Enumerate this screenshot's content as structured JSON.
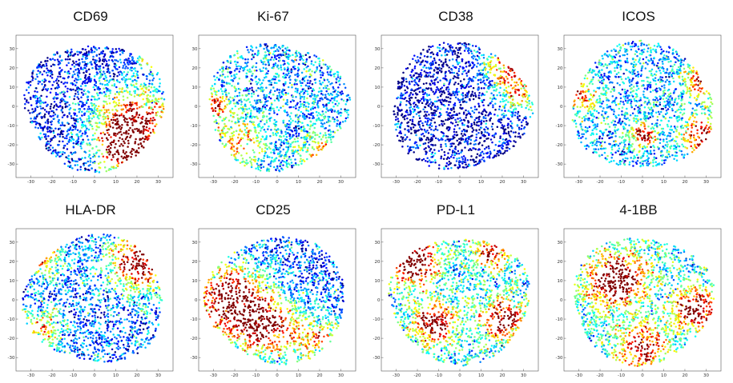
{
  "chart_data": [
    {
      "type": "scatter",
      "title": "CD69",
      "xticks": [
        "-30",
        "-20",
        "-10",
        "0",
        "10",
        "20",
        "30"
      ],
      "yticks": [
        "30",
        "20",
        "10",
        "0",
        "-10",
        "-20",
        "-30"
      ],
      "xlim": [
        -37,
        37
      ],
      "ylim": [
        -37,
        37
      ],
      "grid": false,
      "hotspots": [
        {
          "x": 18,
          "y": -8,
          "intensity": 0.85,
          "spread": 13
        },
        {
          "x": 14,
          "y": -22,
          "intensity": 0.9,
          "spread": 8
        },
        {
          "x": 28,
          "y": 28,
          "intensity": 0.55,
          "spread": 6
        }
      ],
      "baseline": 0.12
    },
    {
      "type": "scatter",
      "title": "Ki-67",
      "xticks": [
        "-30",
        "-20",
        "-10",
        "0",
        "10",
        "20",
        "30"
      ],
      "yticks": [
        "30",
        "20",
        "10",
        "0",
        "-10",
        "-20",
        "-30"
      ],
      "xlim": [
        -37,
        37
      ],
      "ylim": [
        -37,
        37
      ],
      "grid": false,
      "hotspots": [
        {
          "x": 30,
          "y": 30,
          "intensity": 0.95,
          "spread": 5
        },
        {
          "x": -30,
          "y": 0,
          "intensity": 0.55,
          "spread": 6
        },
        {
          "x": -18,
          "y": -18,
          "intensity": 0.45,
          "spread": 8
        },
        {
          "x": 20,
          "y": -25,
          "intensity": 0.45,
          "spread": 7
        }
      ],
      "baseline": 0.28
    },
    {
      "type": "scatter",
      "title": "CD38",
      "xticks": [
        "-30",
        "-20",
        "-10",
        "0",
        "10",
        "20",
        "30"
      ],
      "yticks": [
        "30",
        "20",
        "10",
        "0",
        "-10",
        "-20",
        "-30"
      ],
      "xlim": [
        -37,
        37
      ],
      "ylim": [
        -37,
        37
      ],
      "grid": false,
      "hotspots": [
        {
          "x": 25,
          "y": 22,
          "intensity": 0.9,
          "spread": 9
        },
        {
          "x": 28,
          "y": 5,
          "intensity": 0.55,
          "spread": 6
        }
      ],
      "baseline": 0.08
    },
    {
      "type": "scatter",
      "title": "ICOS",
      "xticks": [
        "-30",
        "-20",
        "-10",
        "0",
        "10",
        "20",
        "30"
      ],
      "yticks": [
        "30",
        "20",
        "10",
        "0",
        "-10",
        "-20",
        "-30"
      ],
      "xlim": [
        -37,
        37
      ],
      "ylim": [
        -37,
        37
      ],
      "grid": false,
      "hotspots": [
        {
          "x": 30,
          "y": 15,
          "intensity": 0.9,
          "spread": 6
        },
        {
          "x": 0,
          "y": -15,
          "intensity": 0.8,
          "spread": 4
        },
        {
          "x": -30,
          "y": 5,
          "intensity": 0.6,
          "spread": 5
        },
        {
          "x": 28,
          "y": -15,
          "intensity": 0.7,
          "spread": 7
        }
      ],
      "baseline": 0.3
    },
    {
      "type": "scatter",
      "title": "HLA-DR",
      "xticks": [
        "-30",
        "-20",
        "-10",
        "0",
        "10",
        "20",
        "30"
      ],
      "yticks": [
        "30",
        "20",
        "10",
        "0",
        "-10",
        "-20",
        "-30"
      ],
      "xlim": [
        -37,
        37
      ],
      "ylim": [
        -37,
        37
      ],
      "grid": false,
      "hotspots": [
        {
          "x": 22,
          "y": 20,
          "intensity": 0.9,
          "spread": 10
        },
        {
          "x": -25,
          "y": 22,
          "intensity": 0.5,
          "spread": 7
        },
        {
          "x": -25,
          "y": -15,
          "intensity": 0.5,
          "spread": 7
        }
      ],
      "baseline": 0.22
    },
    {
      "type": "scatter",
      "title": "CD25",
      "xticks": [
        "-30",
        "-20",
        "-10",
        "0",
        "10",
        "20",
        "30"
      ],
      "yticks": [
        "30",
        "20",
        "10",
        "0",
        "-10",
        "-20",
        "-30"
      ],
      "xlim": [
        -37,
        37
      ],
      "ylim": [
        -37,
        37
      ],
      "grid": false,
      "hotspots": [
        {
          "x": -22,
          "y": 0,
          "intensity": 0.95,
          "spread": 12
        },
        {
          "x": -5,
          "y": -15,
          "intensity": 0.8,
          "spread": 10
        },
        {
          "x": 20,
          "y": -20,
          "intensity": 0.55,
          "spread": 8
        }
      ],
      "baseline": 0.2
    },
    {
      "type": "scatter",
      "title": "PD-L1",
      "xticks": [
        "-30",
        "-20",
        "-10",
        "0",
        "10",
        "20",
        "30"
      ],
      "yticks": [
        "30",
        "20",
        "10",
        "0",
        "-10",
        "-20",
        "-30"
      ],
      "xlim": [
        -37,
        37
      ],
      "ylim": [
        -37,
        37
      ],
      "grid": false,
      "hotspots": [
        {
          "x": -22,
          "y": 20,
          "intensity": 0.9,
          "spread": 8
        },
        {
          "x": -12,
          "y": -12,
          "intensity": 0.8,
          "spread": 7
        },
        {
          "x": 20,
          "y": -10,
          "intensity": 0.75,
          "spread": 7
        },
        {
          "x": 15,
          "y": 25,
          "intensity": 0.65,
          "spread": 6
        }
      ],
      "baseline": 0.35
    },
    {
      "type": "scatter",
      "title": "4-1BB",
      "xticks": [
        "-30",
        "-20",
        "-10",
        "0",
        "10",
        "20",
        "30"
      ],
      "yticks": [
        "30",
        "20",
        "10",
        "0",
        "-10",
        "-20",
        "-30"
      ],
      "xlim": [
        -37,
        37
      ],
      "ylim": [
        -37,
        37
      ],
      "grid": false,
      "hotspots": [
        {
          "x": -12,
          "y": 10,
          "intensity": 0.85,
          "spread": 9
        },
        {
          "x": 25,
          "y": -5,
          "intensity": 0.8,
          "spread": 7
        },
        {
          "x": 0,
          "y": -25,
          "intensity": 0.6,
          "spread": 8
        }
      ],
      "baseline": 0.38
    }
  ],
  "colors": {
    "colormap": "jet",
    "low": "#00008f",
    "high": "#800000"
  }
}
